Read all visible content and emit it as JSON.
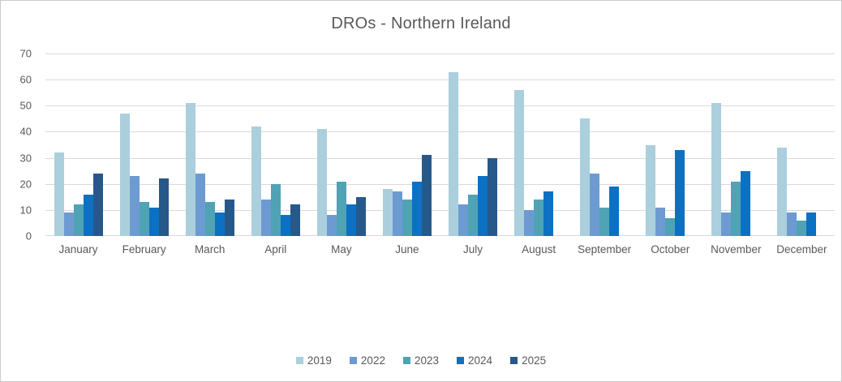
{
  "chart_data": {
    "type": "bar",
    "title": "DROs - Northern Ireland",
    "categories": [
      "January",
      "February",
      "March",
      "April",
      "May",
      "June",
      "July",
      "August",
      "September",
      "October",
      "November",
      "December"
    ],
    "series": [
      {
        "name": "2019",
        "color": "#ABCFDC",
        "values": [
          32,
          47,
          51,
          42,
          41,
          18,
          63,
          56,
          45,
          35,
          51,
          34
        ]
      },
      {
        "name": "2022",
        "color": "#6D9BD1",
        "values": [
          9,
          23,
          24,
          14,
          8,
          17,
          12,
          10,
          24,
          11,
          9,
          9
        ]
      },
      {
        "name": "2023",
        "color": "#4FA3B5",
        "values": [
          12,
          13,
          13,
          20,
          21,
          14,
          16,
          14,
          11,
          7,
          21,
          6
        ]
      },
      {
        "name": "2024",
        "color": "#0C71C3",
        "values": [
          16,
          11,
          9,
          8,
          12,
          21,
          23,
          17,
          19,
          33,
          25,
          9
        ]
      },
      {
        "name": "2025",
        "color": "#27588A",
        "values": [
          24,
          22,
          14,
          12,
          15,
          31,
          30,
          null,
          null,
          null,
          null,
          null
        ]
      }
    ],
    "ylim": [
      0,
      70
    ],
    "ytick_step": 10,
    "grid": true,
    "legend_position": "bottom",
    "text_color": "#595959",
    "gridline_color": "#D9D9D9"
  }
}
